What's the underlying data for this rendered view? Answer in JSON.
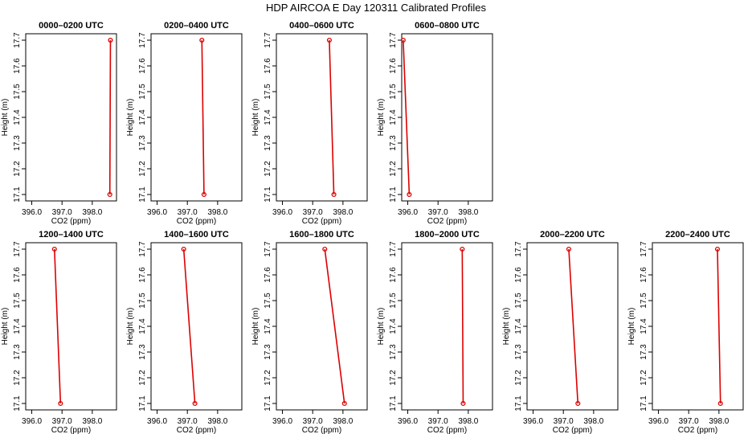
{
  "chart_data": {
    "title": "HDP AIRCOA E  Day 120311  Calibrated Profiles",
    "type": "line",
    "xlabel": "CO2 (ppm)",
    "ylabel": "Height (m)",
    "xlim": [
      395.8,
      398.8
    ],
    "ylim": [
      17.075,
      17.725
    ],
    "x_ticks": [
      "396.0",
      "397.0",
      "398.0"
    ],
    "x_tick_values": [
      396.0,
      397.0,
      398.0
    ],
    "y_ticks": [
      "17.1",
      "17.2",
      "17.3",
      "17.4",
      "17.5",
      "17.6",
      "17.7"
    ],
    "y_tick_values": [
      17.1,
      17.2,
      17.3,
      17.4,
      17.5,
      17.6,
      17.7
    ],
    "line_color": "#dd0000",
    "panels": [
      {
        "title": "0000–0200 UTC",
        "row": 0,
        "col": 0,
        "points": [
          {
            "x": 398.58,
            "y": 17.1
          },
          {
            "x": 398.6,
            "y": 17.7
          }
        ]
      },
      {
        "title": "0200–0400 UTC",
        "row": 0,
        "col": 1,
        "points": [
          {
            "x": 397.55,
            "y": 17.1
          },
          {
            "x": 397.48,
            "y": 17.7
          }
        ]
      },
      {
        "title": "0400–0600 UTC",
        "row": 0,
        "col": 2,
        "points": [
          {
            "x": 397.7,
            "y": 17.1
          },
          {
            "x": 397.55,
            "y": 17.7
          }
        ]
      },
      {
        "title": "0600–0800 UTC",
        "row": 0,
        "col": 3,
        "points": [
          {
            "x": 396.05,
            "y": 17.1
          },
          {
            "x": 395.85,
            "y": 17.7
          }
        ]
      },
      {
        "title": "1200–1400 UTC",
        "row": 1,
        "col": 0,
        "points": [
          {
            "x": 396.95,
            "y": 17.1
          },
          {
            "x": 396.75,
            "y": 17.7
          }
        ]
      },
      {
        "title": "1400–1600 UTC",
        "row": 1,
        "col": 1,
        "points": [
          {
            "x": 397.25,
            "y": 17.1
          },
          {
            "x": 396.88,
            "y": 17.7
          }
        ]
      },
      {
        "title": "1600–1800 UTC",
        "row": 1,
        "col": 2,
        "points": [
          {
            "x": 398.05,
            "y": 17.1
          },
          {
            "x": 397.4,
            "y": 17.7
          }
        ]
      },
      {
        "title": "1800–2000 UTC",
        "row": 1,
        "col": 3,
        "points": [
          {
            "x": 397.83,
            "y": 17.1
          },
          {
            "x": 397.8,
            "y": 17.7
          }
        ]
      },
      {
        "title": "2000–2200 UTC",
        "row": 1,
        "col": 4,
        "points": [
          {
            "x": 397.48,
            "y": 17.1
          },
          {
            "x": 397.18,
            "y": 17.7
          }
        ]
      },
      {
        "title": "2200–2400 UTC",
        "row": 1,
        "col": 5,
        "points": [
          {
            "x": 398.05,
            "y": 17.1
          },
          {
            "x": 397.95,
            "y": 17.7
          }
        ]
      }
    ]
  }
}
